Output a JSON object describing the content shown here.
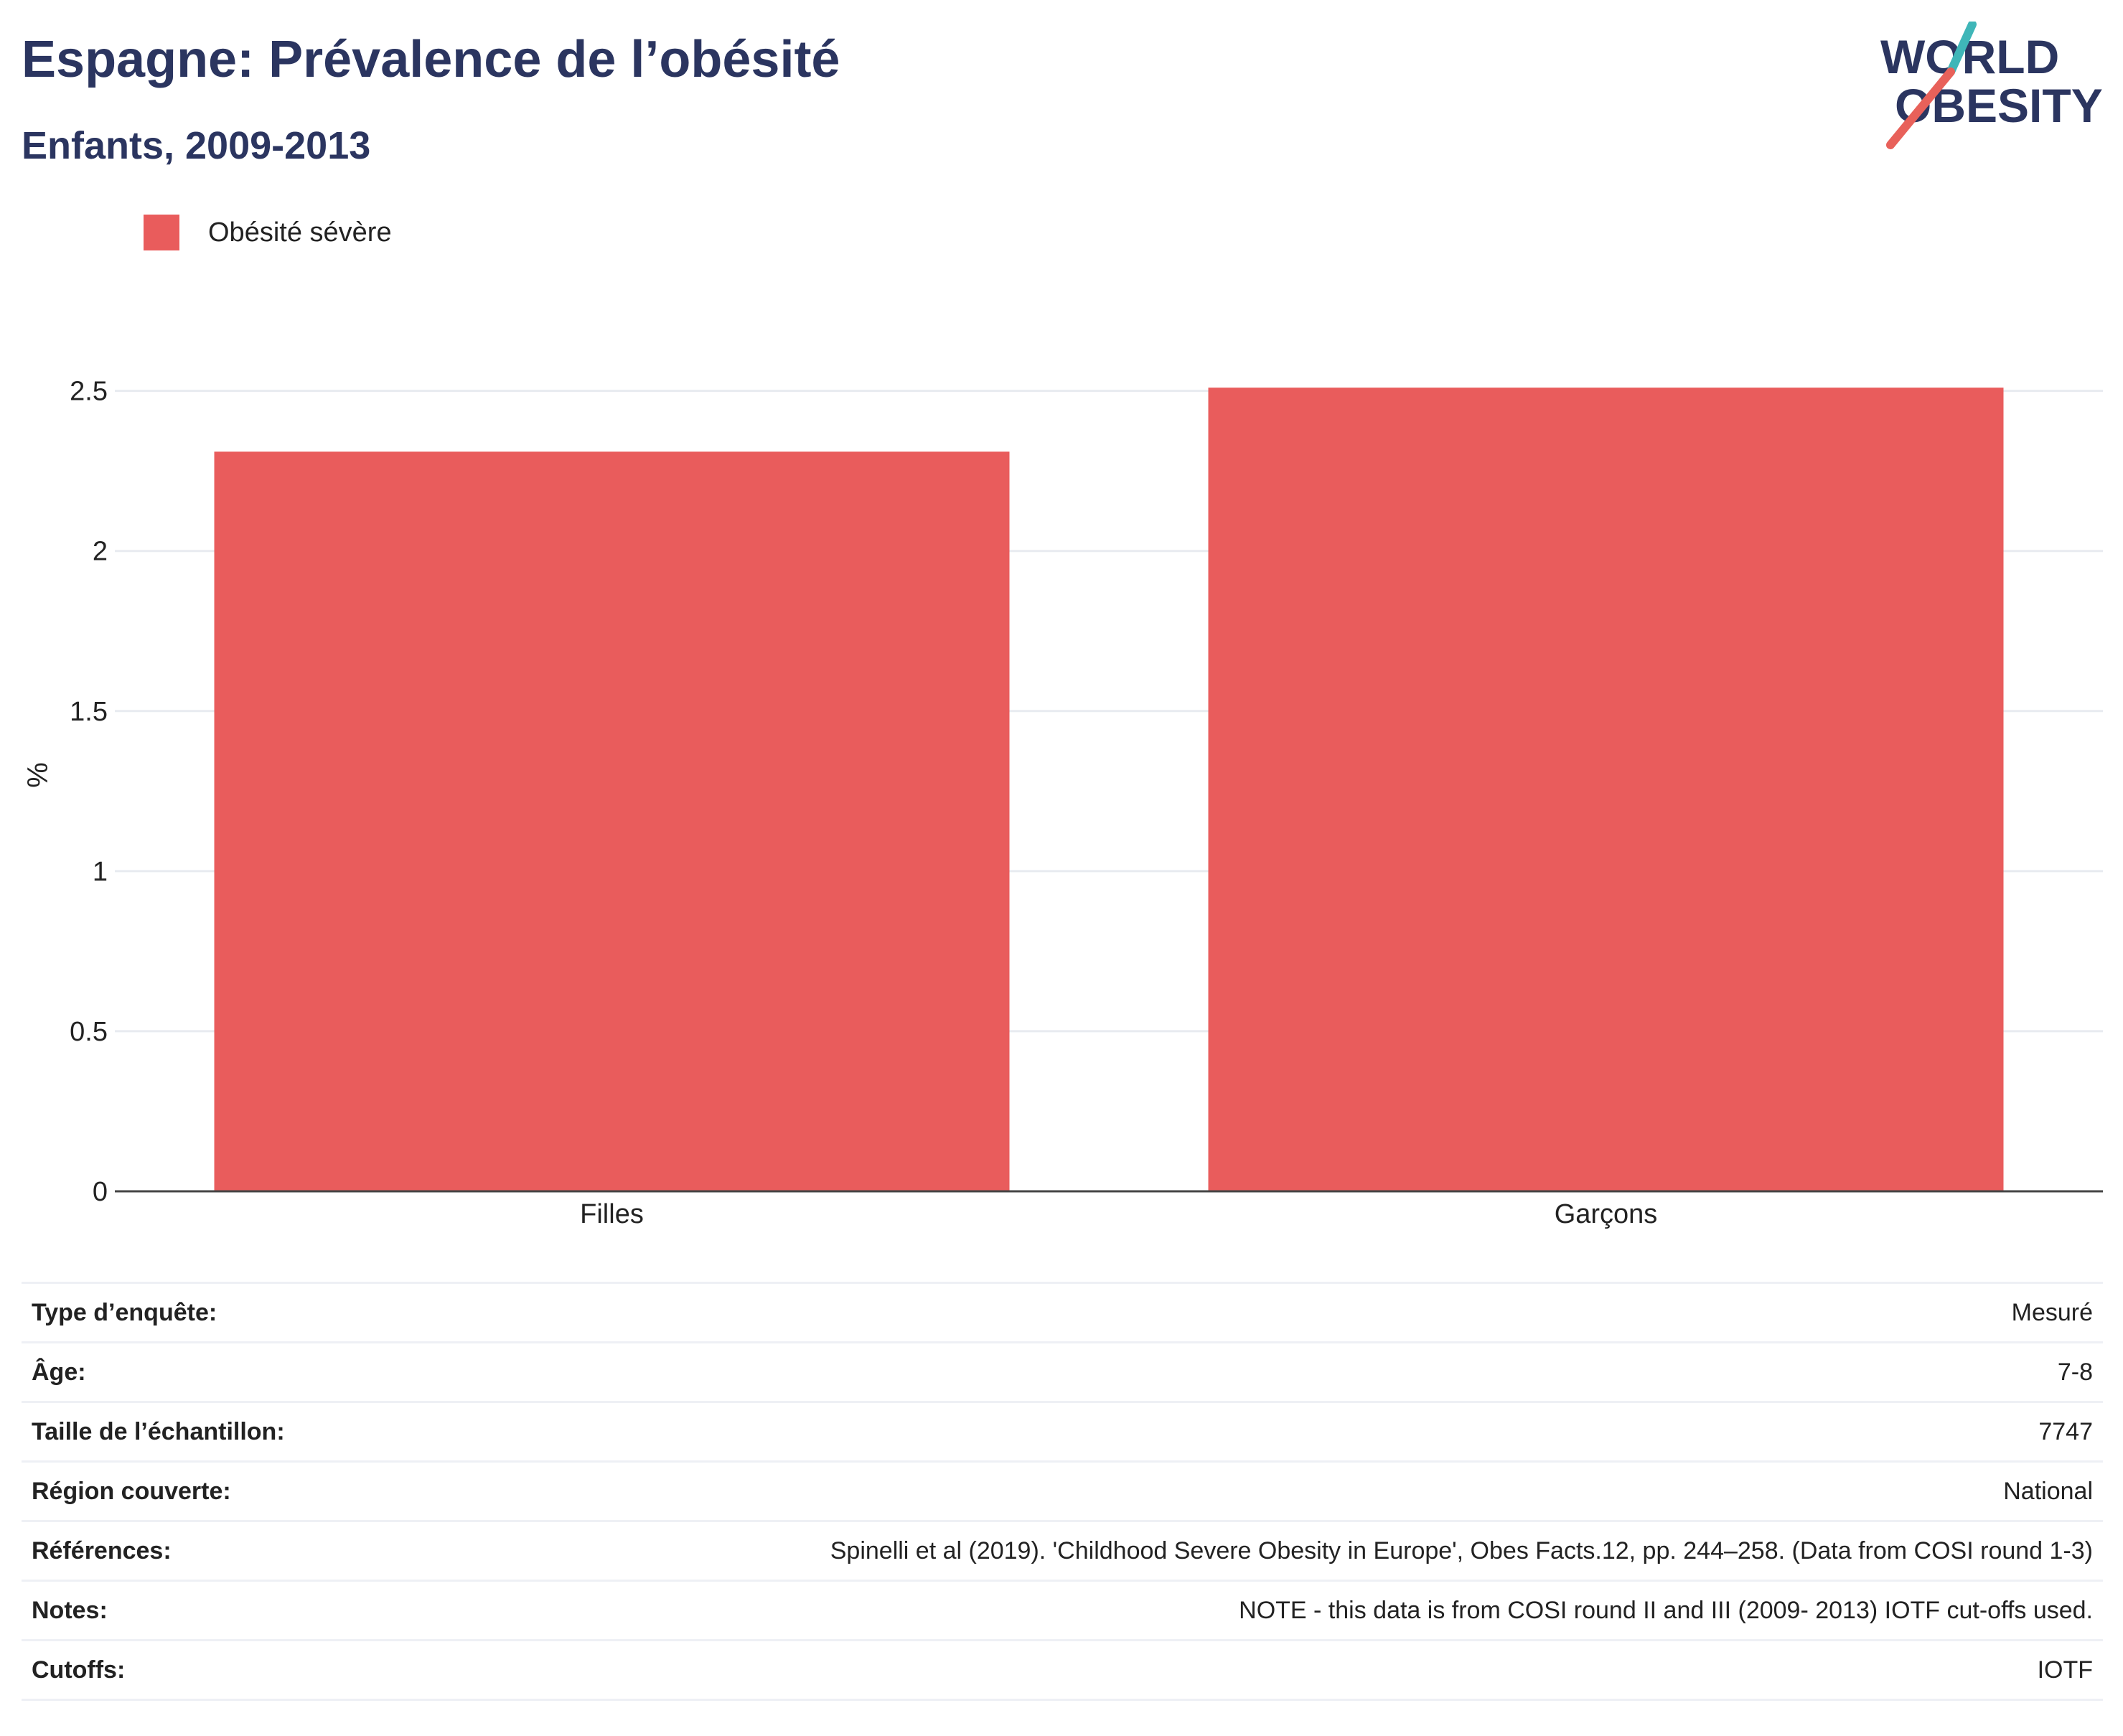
{
  "header": {
    "title": "Espagne: Prévalence de l’obésité",
    "subtitle": "Enfants, 2009-2013"
  },
  "logo": {
    "line1": "WORLD",
    "line2": "OBESITY",
    "colors": {
      "text": "#2b3560",
      "slash_teal": "#3fb6b8",
      "slash_coral": "#e8615a"
    }
  },
  "legend": {
    "items": [
      {
        "label": "Obésité sévère",
        "color": "#e95c5c"
      }
    ]
  },
  "chart_data": {
    "type": "bar",
    "categories": [
      "Filles",
      "Garçons"
    ],
    "series": [
      {
        "name": "Obésité sévère",
        "values": [
          2.31,
          2.51
        ],
        "color": "#e95c5c"
      }
    ],
    "ylabel": "%",
    "ylim": [
      0,
      2.6
    ],
    "yticks": [
      0,
      0.5,
      1,
      1.5,
      2,
      2.5
    ],
    "ytick_labels": [
      "0",
      "0.5",
      "1",
      "1.5",
      "2",
      "2.5"
    ],
    "grid": true,
    "legend_position": "top-left"
  },
  "info": {
    "rows": [
      {
        "key": "Type d’enquête:",
        "value": "Mesuré"
      },
      {
        "key": "Âge:",
        "value": "7-8"
      },
      {
        "key": "Taille de l’échantillon:",
        "value": "7747"
      },
      {
        "key": "Région couverte:",
        "value": "National"
      },
      {
        "key": "Références:",
        "value": "Spinelli et al (2019). 'Childhood Severe Obesity in Europe', Obes Facts.12, pp. 244–258. (Data from COSI round 1-3)"
      },
      {
        "key": "Notes:",
        "value": "NOTE - this data is from COSI round II and III (2009- 2013) IOTF cut-offs used."
      },
      {
        "key": "Cutoffs:",
        "value": "IOTF"
      }
    ]
  }
}
